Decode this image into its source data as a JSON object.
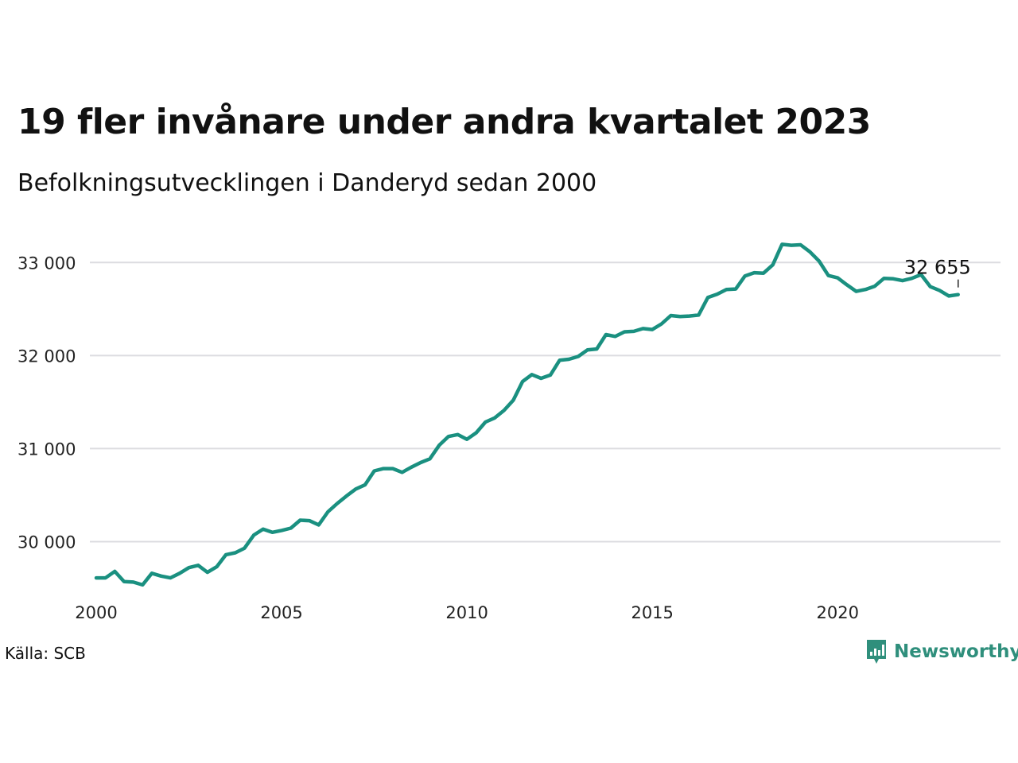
{
  "title": "19 fler invånare under andra kvartalet 2023",
  "subtitle": "Befolkningsutvecklingen i Danderyd sedan 2000",
  "source": "Källa: SCB",
  "brand": {
    "name": "Newsworthy",
    "logo_icon": "bar-chart-speech-bubble-icon",
    "color": "#2f8f7c"
  },
  "chart_data": {
    "type": "line",
    "color": "#1a9080",
    "grid": true,
    "xlim": [
      2000,
      2024.5
    ],
    "ylim": [
      29500,
      33250
    ],
    "x_ticks": [
      2000,
      2005,
      2010,
      2015,
      2020
    ],
    "x_tick_labels": [
      "2000",
      "2005",
      "2010",
      "2015",
      "2020"
    ],
    "y_ticks": [
      30000,
      31000,
      32000,
      33000
    ],
    "y_tick_labels": [
      "30 000",
      "31 000",
      "32 000",
      "33 000"
    ],
    "end_label": "32 655",
    "series": [
      {
        "x": [
          2000.0,
          2000.25,
          2000.5,
          2000.75,
          2001.0,
          2001.25,
          2001.5,
          2001.75,
          2002.0,
          2002.25,
          2002.5,
          2002.75,
          2003.0,
          2003.25,
          2003.5,
          2003.75,
          2004.0,
          2004.25,
          2004.5,
          2004.75,
          2005.0,
          2005.25,
          2005.5,
          2005.75,
          2006.0,
          2006.25,
          2006.5,
          2006.75,
          2007.0,
          2007.25,
          2007.5,
          2007.75,
          2008.0,
          2008.25,
          2008.5,
          2008.75,
          2009.0,
          2009.25,
          2009.5,
          2009.75,
          2010.0,
          2010.25,
          2010.5,
          2010.75,
          2011.0,
          2011.25,
          2011.5,
          2011.75,
          2012.0,
          2012.25,
          2012.5,
          2012.75,
          2013.0,
          2013.25,
          2013.5,
          2013.75,
          2014.0,
          2014.25,
          2014.5,
          2014.75,
          2015.0,
          2015.25,
          2015.5,
          2015.75,
          2016.0,
          2016.25,
          2016.5,
          2016.75,
          2017.0,
          2017.25,
          2017.5,
          2017.75,
          2018.0,
          2018.25,
          2018.5,
          2018.75,
          2019.0,
          2019.25,
          2019.5,
          2019.75,
          2020.0,
          2020.25,
          2020.5,
          2020.75,
          2021.0,
          2021.25,
          2021.5,
          2021.75,
          2022.0,
          2022.25,
          2022.5,
          2022.75,
          2023.0,
          2023.25
        ],
        "values": [
          29610,
          29610,
          29680,
          29570,
          29565,
          29535,
          29660,
          29630,
          29610,
          29660,
          29720,
          29745,
          29670,
          29730,
          29860,
          29880,
          29930,
          30070,
          30135,
          30100,
          30120,
          30145,
          30230,
          30225,
          30180,
          30320,
          30410,
          30490,
          30565,
          30610,
          30760,
          30785,
          30785,
          30745,
          30800,
          30850,
          30890,
          31035,
          31130,
          31150,
          31100,
          31170,
          31285,
          31330,
          31410,
          31520,
          31720,
          31795,
          31755,
          31790,
          31950,
          31960,
          31990,
          32060,
          32070,
          32225,
          32205,
          32255,
          32260,
          32290,
          32280,
          32340,
          32430,
          32420,
          32425,
          32435,
          32625,
          32660,
          32710,
          32715,
          32855,
          32890,
          32885,
          32975,
          33195,
          33185,
          33190,
          33115,
          33015,
          32860,
          32835,
          32760,
          32690,
          32710,
          32745,
          32830,
          32825,
          32805,
          32830,
          32870,
          32740,
          32700,
          32640,
          32655
        ]
      }
    ]
  }
}
